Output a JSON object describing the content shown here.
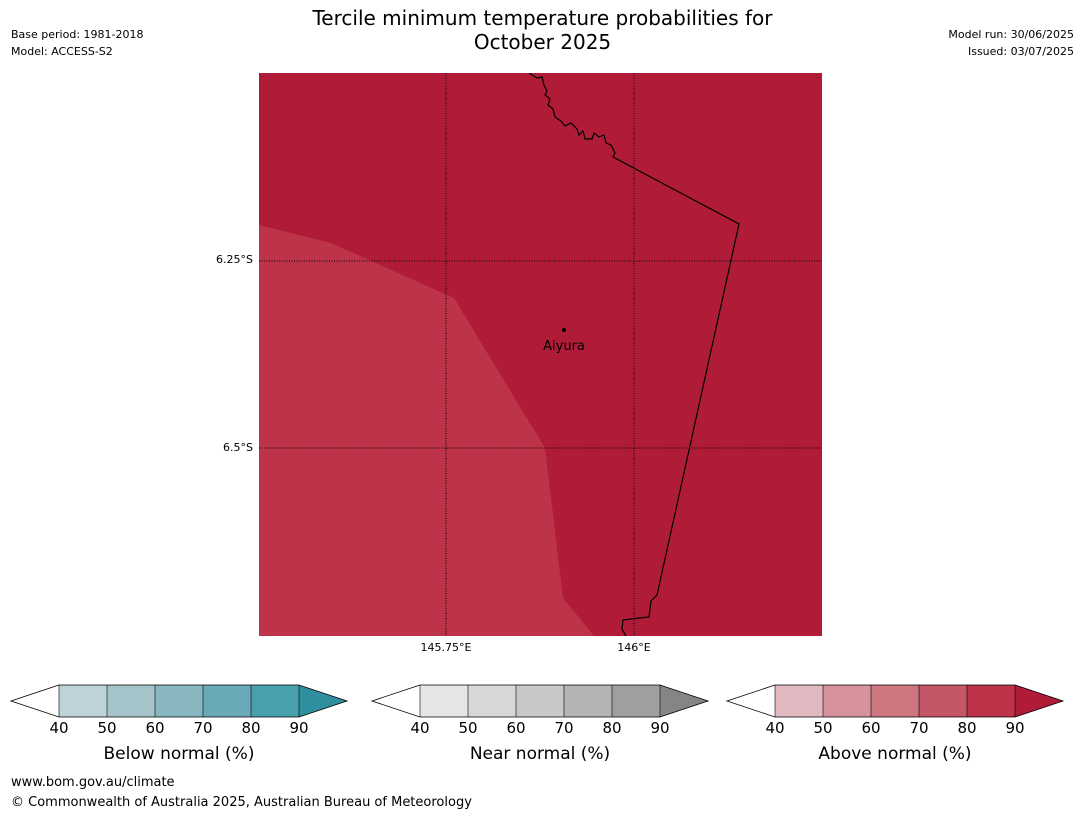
{
  "header": {
    "base_period": "Base period: 1981-2018",
    "model": "Model: ACCESS-S2",
    "title_line1": "Tercile minimum temperature probabilities for",
    "title_line2": "October 2025",
    "model_run": "Model run: 30/06/2025",
    "issued": "Issued: 03/07/2025"
  },
  "map": {
    "lat_labels": [
      "6.25°S",
      "6.5°S"
    ],
    "lon_labels": [
      "145.75°E",
      "146°E"
    ],
    "place": "Aiyura",
    "colors": {
      "above_80_90": "#bd3349",
      "above_90_plus": "#b01c38"
    }
  },
  "legends": [
    {
      "title": "Below normal (%)",
      "ticks": [
        "40",
        "50",
        "60",
        "70",
        "80",
        "90"
      ],
      "colors": [
        "#ffffff",
        "#bdd3d8",
        "#a5c4ca",
        "#88b6c1",
        "#6aaab8",
        "#48a0ad",
        "#2f8f9e"
      ]
    },
    {
      "title": "Near normal (%)",
      "ticks": [
        "40",
        "50",
        "60",
        "70",
        "80",
        "90"
      ],
      "colors": [
        "#ffffff",
        "#e6e6e6",
        "#d8d8d8",
        "#c8c8c8",
        "#b4b4b4",
        "#9f9f9f",
        "#858585"
      ]
    },
    {
      "title": "Above normal (%)",
      "ticks": [
        "40",
        "50",
        "60",
        "70",
        "80",
        "90"
      ],
      "colors": [
        "#ffffff",
        "#e1b8bf",
        "#d6939d",
        "#cd7680",
        "#c45667",
        "#bd3349",
        "#b01c38"
      ]
    }
  ],
  "footer": {
    "url": "www.bom.gov.au/climate",
    "copyright": "© Commonwealth of Australia 2025, Australian Bureau of Meteorology"
  }
}
